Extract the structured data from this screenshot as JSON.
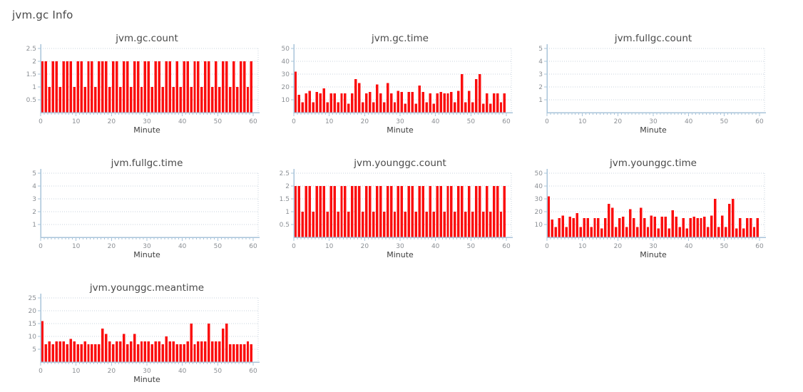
{
  "page": {
    "title": "jvm.gc Info"
  },
  "colors": {
    "bar": "#fb0d0d",
    "axis": "#a9c4da",
    "grid": "#c9d3dd",
    "tick_label": "#8b8f94",
    "title_text": "#4a4a4a",
    "xlabel_text": "#3d3d3d",
    "background": "#ffffff"
  },
  "chart_data": [
    {
      "type": "bar",
      "title": "jvm.gc.count",
      "xlabel": "Minute",
      "xlim": [
        0,
        60
      ],
      "x_ticks": [
        0,
        10,
        20,
        30,
        40,
        50,
        60
      ],
      "ylim": [
        0,
        2.5
      ],
      "y_ticks": [
        0.5,
        1,
        1.5,
        2,
        2.5
      ],
      "grid": "dotted",
      "legend": "none",
      "values": [
        2,
        2,
        1,
        2,
        2,
        1,
        2,
        2,
        2,
        1,
        2,
        2,
        1,
        2,
        2,
        1,
        2,
        2,
        2,
        1,
        2,
        2,
        1,
        2,
        2,
        1,
        2,
        2,
        1,
        2,
        2,
        1,
        2,
        2,
        1,
        2,
        2,
        1,
        2,
        1,
        2,
        2,
        1,
        2,
        2,
        1,
        2,
        2,
        1,
        2,
        1,
        2,
        2,
        1,
        2,
        1,
        2,
        2,
        1,
        2
      ]
    },
    {
      "type": "bar",
      "title": "jvm.gc.time",
      "xlabel": "Minute",
      "xlim": [
        0,
        60
      ],
      "x_ticks": [
        0,
        10,
        20,
        30,
        40,
        50,
        60
      ],
      "ylim": [
        0,
        50
      ],
      "y_ticks": [
        10,
        20,
        30,
        40,
        50
      ],
      "grid": "dotted",
      "legend": "none",
      "values": [
        32,
        14,
        8,
        15,
        17,
        8,
        16,
        15,
        19,
        8,
        15,
        15,
        8,
        15,
        15,
        7,
        15,
        26,
        23,
        8,
        15,
        16,
        8,
        22,
        15,
        8,
        23,
        15,
        8,
        17,
        16,
        7,
        16,
        16,
        7,
        21,
        16,
        8,
        15,
        7,
        15,
        16,
        15,
        15,
        16,
        8,
        17,
        30,
        8,
        17,
        8,
        26,
        30,
        7,
        15,
        7,
        15,
        15,
        8,
        15
      ]
    },
    {
      "type": "bar",
      "title": "jvm.fullgc.count",
      "xlabel": "Minute",
      "xlim": [
        0,
        60
      ],
      "x_ticks": [
        0,
        10,
        20,
        30,
        40,
        50,
        60
      ],
      "ylim": [
        0,
        5
      ],
      "y_ticks": [
        1,
        2,
        3,
        4,
        5
      ],
      "grid": "dotted",
      "legend": "none",
      "values": []
    },
    {
      "type": "bar",
      "title": "jvm.fullgc.time",
      "xlabel": "Minute",
      "xlim": [
        0,
        60
      ],
      "x_ticks": [
        0,
        10,
        20,
        30,
        40,
        50,
        60
      ],
      "ylim": [
        0,
        5
      ],
      "y_ticks": [
        1,
        2,
        3,
        4,
        5
      ],
      "grid": "dotted",
      "legend": "none",
      "values": []
    },
    {
      "type": "bar",
      "title": "jvm.younggc.count",
      "xlabel": "Minute",
      "xlim": [
        0,
        60
      ],
      "x_ticks": [
        0,
        10,
        20,
        30,
        40,
        50,
        60
      ],
      "ylim": [
        0,
        2.5
      ],
      "y_ticks": [
        0.5,
        1,
        1.5,
        2,
        2.5
      ],
      "grid": "dotted",
      "legend": "none",
      "values": [
        2,
        2,
        1,
        2,
        2,
        1,
        2,
        2,
        2,
        1,
        2,
        2,
        1,
        2,
        2,
        1,
        2,
        2,
        2,
        1,
        2,
        2,
        1,
        2,
        2,
        1,
        2,
        2,
        1,
        2,
        2,
        1,
        2,
        2,
        1,
        2,
        2,
        1,
        2,
        1,
        2,
        2,
        1,
        2,
        2,
        1,
        2,
        2,
        1,
        2,
        1,
        2,
        2,
        1,
        2,
        1,
        2,
        2,
        1,
        2
      ]
    },
    {
      "type": "bar",
      "title": "jvm.younggc.time",
      "xlabel": "Minute",
      "xlim": [
        0,
        60
      ],
      "x_ticks": [
        0,
        10,
        20,
        30,
        40,
        50,
        60
      ],
      "ylim": [
        0,
        50
      ],
      "y_ticks": [
        10,
        20,
        30,
        40,
        50
      ],
      "grid": "dotted",
      "legend": "none",
      "values": [
        32,
        14,
        8,
        15,
        17,
        8,
        16,
        15,
        19,
        8,
        15,
        15,
        8,
        15,
        15,
        7,
        15,
        26,
        23,
        8,
        15,
        16,
        8,
        22,
        15,
        8,
        23,
        15,
        8,
        17,
        16,
        7,
        16,
        16,
        7,
        21,
        16,
        8,
        15,
        7,
        15,
        16,
        15,
        15,
        16,
        8,
        17,
        30,
        8,
        17,
        8,
        26,
        30,
        7,
        15,
        7,
        15,
        15,
        8,
        15
      ]
    },
    {
      "type": "bar",
      "title": "jvm.younggc.meantime",
      "xlabel": "Minute",
      "xlim": [
        0,
        60
      ],
      "x_ticks": [
        0,
        10,
        20,
        30,
        40,
        50,
        60
      ],
      "ylim": [
        0,
        25
      ],
      "y_ticks": [
        5,
        10,
        15,
        20,
        25
      ],
      "grid": "dotted",
      "legend": "none",
      "values": [
        16,
        7,
        8,
        7,
        8,
        8,
        8,
        7,
        9,
        8,
        7,
        7,
        8,
        7,
        7,
        7,
        7,
        13,
        11,
        8,
        7,
        8,
        8,
        11,
        7,
        8,
        11,
        7,
        8,
        8,
        8,
        7,
        8,
        8,
        7,
        10,
        8,
        8,
        7,
        7,
        7,
        8,
        15,
        7,
        8,
        8,
        8,
        15,
        8,
        8,
        8,
        13,
        15,
        7,
        7,
        7,
        7,
        7,
        8,
        7
      ]
    }
  ]
}
